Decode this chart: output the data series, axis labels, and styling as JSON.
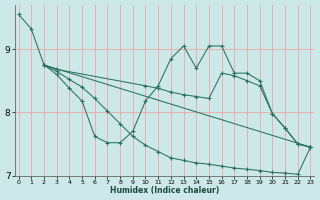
{
  "xlabel": "Humidex (Indice chaleur)",
  "bg_color": "#cce8e8",
  "grid_color": "#e8b0b0",
  "line_color": "#2a7060",
  "xlim": [
    -0.3,
    23.3
  ],
  "ylim": [
    7.0,
    9.7
  ],
  "yticks": [
    7,
    8,
    9
  ],
  "xticks": [
    0,
    1,
    2,
    3,
    4,
    5,
    6,
    7,
    8,
    9,
    10,
    11,
    12,
    13,
    14,
    15,
    16,
    17,
    18,
    19,
    20,
    21,
    22,
    23
  ],
  "lines": [
    {
      "x": [
        0,
        1,
        2,
        3,
        4,
        5,
        6,
        7,
        8,
        9,
        10,
        11,
        12,
        13,
        14,
        15,
        16,
        17,
        18,
        19,
        20,
        21,
        22,
        23
      ],
      "y": [
        9.55,
        9.32,
        8.75,
        8.6,
        8.38,
        8.18,
        7.62,
        7.52,
        7.52,
        7.7,
        8.18,
        8.42,
        8.85,
        9.05,
        8.7,
        9.05,
        9.05,
        8.62,
        8.62,
        8.5,
        7.98,
        7.75,
        7.5,
        7.45
      ]
    },
    {
      "x": [
        2,
        3,
        10,
        11,
        12,
        13,
        14,
        15,
        16,
        17,
        18,
        19,
        20,
        21,
        22,
        23
      ],
      "y": [
        8.75,
        8.68,
        8.42,
        8.38,
        8.32,
        8.28,
        8.25,
        8.22,
        8.62,
        8.58,
        8.5,
        8.42,
        7.98,
        7.75,
        7.5,
        7.45
      ]
    },
    {
      "x": [
        2,
        23
      ],
      "y": [
        8.75,
        7.45
      ]
    },
    {
      "x": [
        2,
        3,
        4,
        5,
        6,
        7,
        8,
        9,
        10,
        11,
        12,
        13,
        14,
        15,
        16,
        17,
        18,
        19,
        20,
        21,
        22,
        23
      ],
      "y": [
        8.75,
        8.65,
        8.52,
        8.4,
        8.22,
        8.02,
        7.82,
        7.62,
        7.48,
        7.38,
        7.28,
        7.24,
        7.2,
        7.18,
        7.15,
        7.12,
        7.1,
        7.08,
        7.05,
        7.04,
        7.02,
        7.45
      ]
    }
  ]
}
